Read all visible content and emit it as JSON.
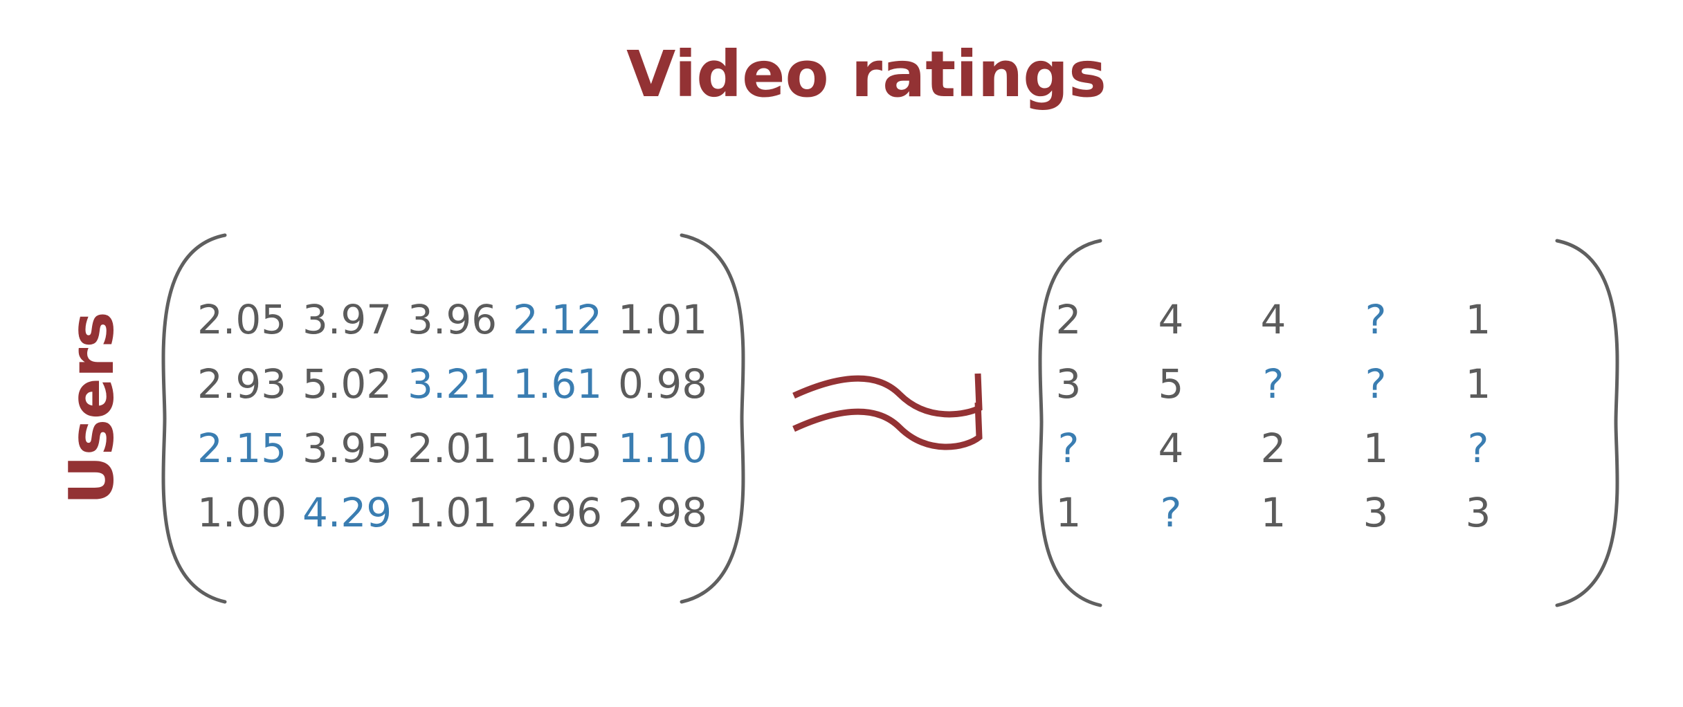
{
  "title": "Video ratings",
  "side_label": "Users",
  "colors": {
    "title": "#933234",
    "text": "#5b5b5b",
    "highlight": "#3a7db1",
    "bracket": "#5f5f5f"
  },
  "approx_symbol_icon": "approximately-equal-icon",
  "left_matrix": {
    "rows": [
      [
        {
          "value": "2.05",
          "highlight": false
        },
        {
          "value": "3.97",
          "highlight": false
        },
        {
          "value": "3.96",
          "highlight": false
        },
        {
          "value": "2.12",
          "highlight": true
        },
        {
          "value": "1.01",
          "highlight": false
        }
      ],
      [
        {
          "value": "2.93",
          "highlight": false
        },
        {
          "value": "5.02",
          "highlight": false
        },
        {
          "value": "3.21",
          "highlight": true
        },
        {
          "value": "1.61",
          "highlight": true
        },
        {
          "value": "0.98",
          "highlight": false
        }
      ],
      [
        {
          "value": "2.15",
          "highlight": true
        },
        {
          "value": "3.95",
          "highlight": false
        },
        {
          "value": "2.01",
          "highlight": false
        },
        {
          "value": "1.05",
          "highlight": false
        },
        {
          "value": "1.10",
          "highlight": true
        }
      ],
      [
        {
          "value": "1.00",
          "highlight": false
        },
        {
          "value": "4.29",
          "highlight": true
        },
        {
          "value": "1.01",
          "highlight": false
        },
        {
          "value": "2.96",
          "highlight": false
        },
        {
          "value": "2.98",
          "highlight": false
        }
      ]
    ]
  },
  "right_matrix": {
    "rows": [
      [
        {
          "value": "2",
          "highlight": false
        },
        {
          "value": "4",
          "highlight": false
        },
        {
          "value": "4",
          "highlight": false
        },
        {
          "value": "?",
          "highlight": true
        },
        {
          "value": "1",
          "highlight": false
        }
      ],
      [
        {
          "value": "3",
          "highlight": false
        },
        {
          "value": "5",
          "highlight": false
        },
        {
          "value": "?",
          "highlight": true
        },
        {
          "value": "?",
          "highlight": true
        },
        {
          "value": "1",
          "highlight": false
        }
      ],
      [
        {
          "value": "?",
          "highlight": true
        },
        {
          "value": "4",
          "highlight": false
        },
        {
          "value": "2",
          "highlight": false
        },
        {
          "value": "1",
          "highlight": false
        },
        {
          "value": "?",
          "highlight": true
        }
      ],
      [
        {
          "value": "1",
          "highlight": false
        },
        {
          "value": "?",
          "highlight": true
        },
        {
          "value": "1",
          "highlight": false
        },
        {
          "value": "3",
          "highlight": false
        },
        {
          "value": "3",
          "highlight": false
        }
      ]
    ]
  }
}
